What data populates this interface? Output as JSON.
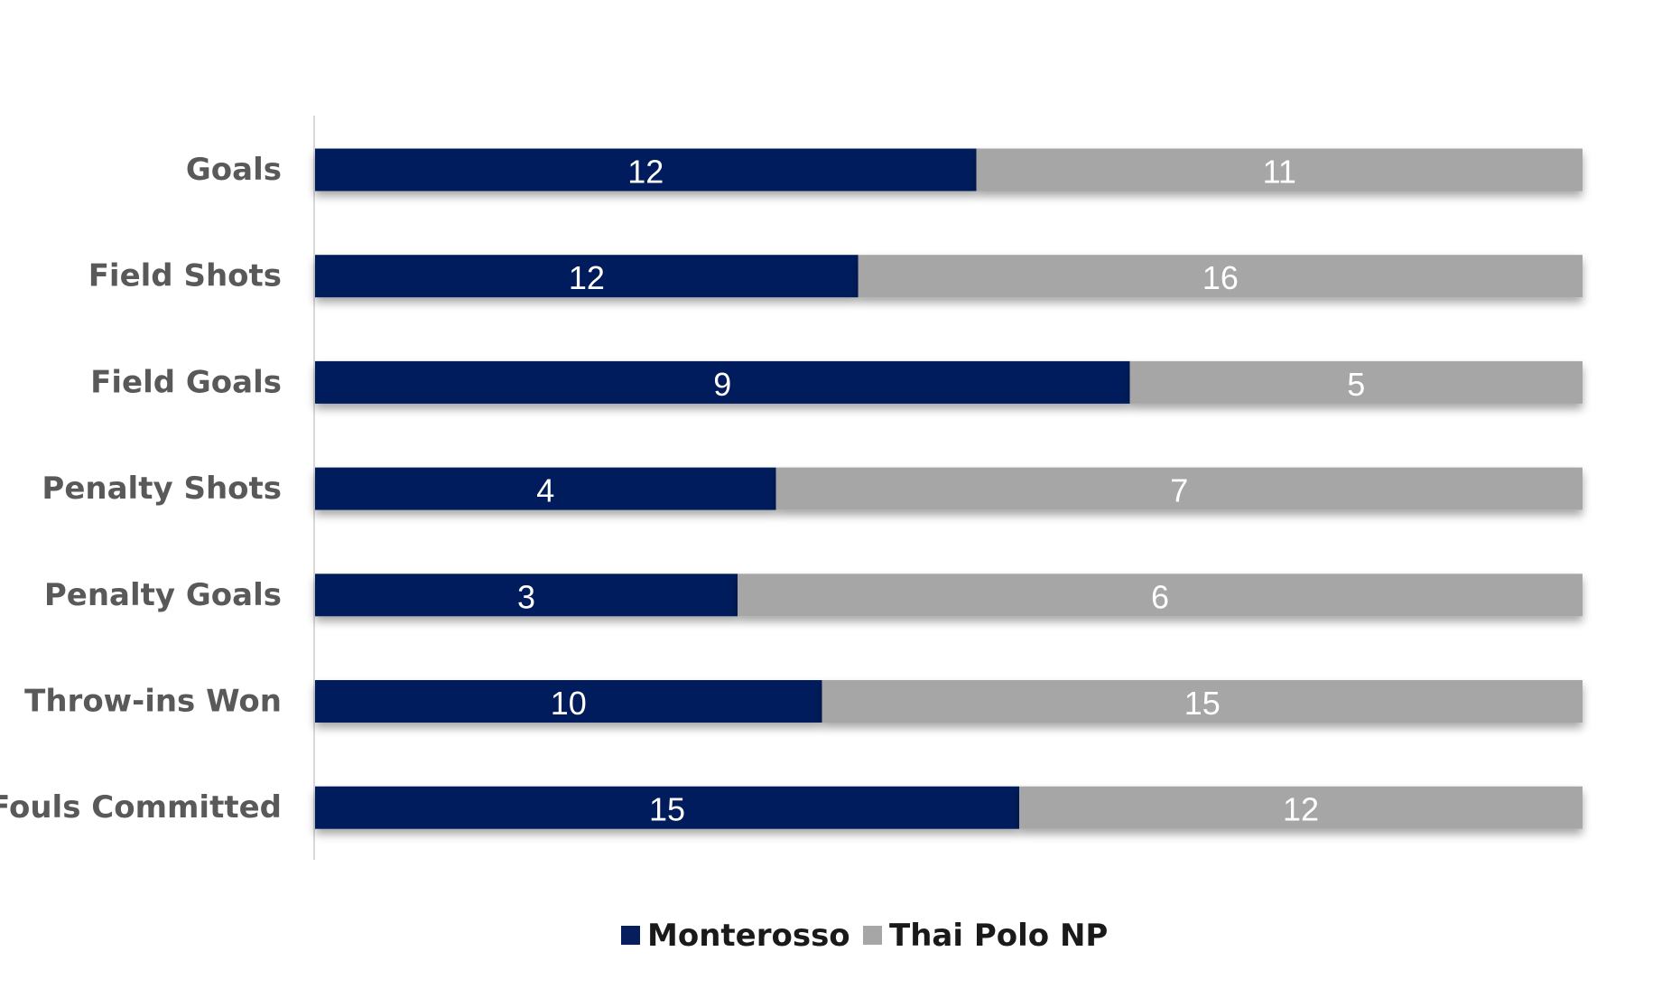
{
  "chart_data": {
    "type": "bar",
    "orientation": "horizontal",
    "stacked": "percent",
    "categories": [
      "Goals",
      "Field Shots",
      "Field Goals",
      "Penalty Shots",
      "Penalty Goals",
      "Throw-ins Won",
      "Fouls Committed"
    ],
    "series": [
      {
        "name": "Monterosso",
        "values": [
          12,
          12,
          9,
          4,
          3,
          10,
          15
        ],
        "color": "#061f5c"
      },
      {
        "name": "Thai Polo NP",
        "values": [
          11,
          16,
          5,
          7,
          6,
          15,
          12
        ],
        "color": "#a6a6a6"
      }
    ],
    "data_labels": true,
    "legend_position": "bottom",
    "grid": false
  }
}
